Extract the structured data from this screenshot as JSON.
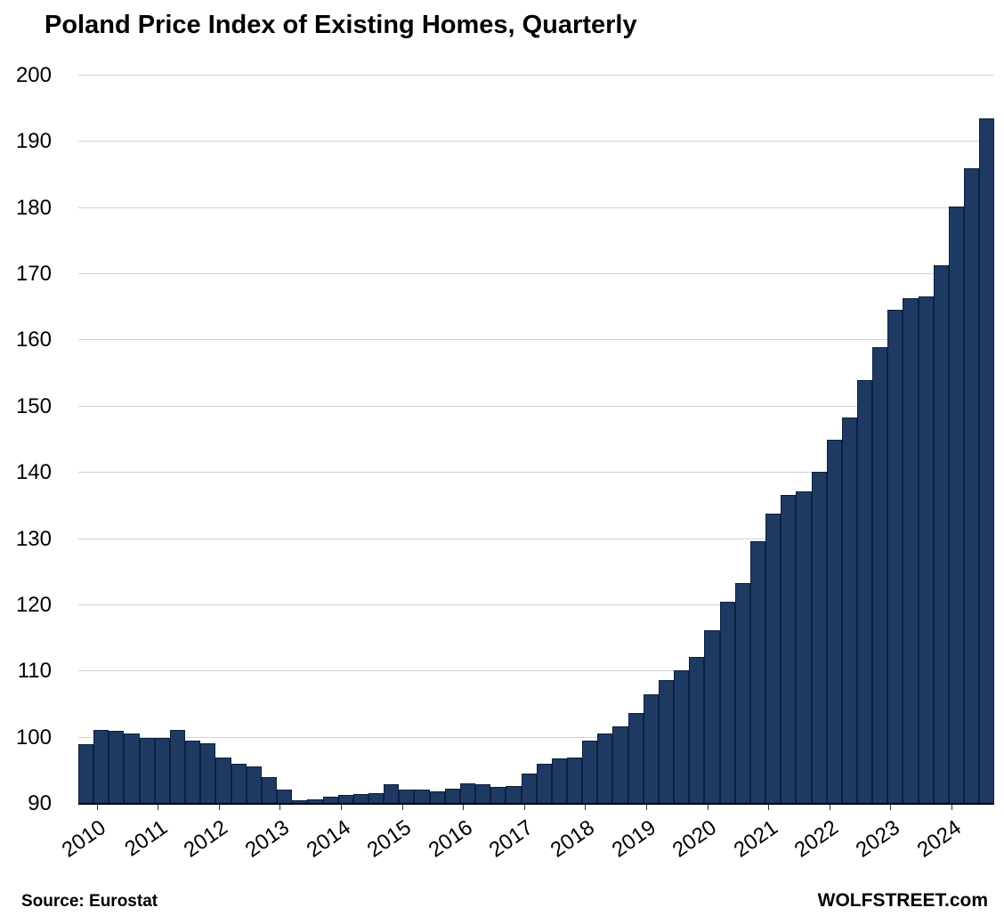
{
  "header": {
    "title": "Poland Price Index of Existing Homes, Quarterly"
  },
  "footer": {
    "source": "Source: Eurostat",
    "branding": "WOLFSTREET.com"
  },
  "colors": {
    "bar_fill": "#1e3a63",
    "bar_border": "#0c2040",
    "gridline": "#c8d5e3",
    "axis_line": "#000000",
    "text": "#000000"
  },
  "chart_data": {
    "type": "bar",
    "title": "Poland Price Index of Existing Homes, Quarterly",
    "xlabel": "",
    "ylabel": "",
    "ylim": [
      90,
      200
    ],
    "y_ticks": [
      90,
      100,
      110,
      120,
      130,
      140,
      150,
      160,
      170,
      180,
      190,
      200
    ],
    "bar_baseline": 90,
    "grid": true,
    "legend_position": "none",
    "source_note": "Source: Eurostat",
    "x_year_labels": [
      "2010",
      "2011",
      "2012",
      "2013",
      "2014",
      "2015",
      "2016",
      "2017",
      "2018",
      "2019",
      "2020",
      "2021",
      "2022",
      "2023",
      "2024"
    ],
    "quarters": [
      "2010 Q1",
      "2010 Q2",
      "2010 Q3",
      "2010 Q4",
      "2011 Q1",
      "2011 Q2",
      "2011 Q3",
      "2011 Q4",
      "2012 Q1",
      "2012 Q2",
      "2012 Q3",
      "2012 Q4",
      "2013 Q1",
      "2013 Q2",
      "2013 Q3",
      "2013 Q4",
      "2014 Q1",
      "2014 Q2",
      "2014 Q3",
      "2014 Q4",
      "2015 Q1",
      "2015 Q2",
      "2015 Q3",
      "2015 Q4",
      "2016 Q1",
      "2016 Q2",
      "2016 Q3",
      "2016 Q4",
      "2017 Q1",
      "2017 Q2",
      "2017 Q3",
      "2017 Q4",
      "2018 Q1",
      "2018 Q2",
      "2018 Q3",
      "2018 Q4",
      "2019 Q1",
      "2019 Q2",
      "2019 Q3",
      "2019 Q4",
      "2020 Q1",
      "2020 Q2",
      "2020 Q3",
      "2020 Q4",
      "2021 Q1",
      "2021 Q2",
      "2021 Q3",
      "2021 Q4",
      "2022 Q1",
      "2022 Q2",
      "2022 Q3",
      "2022 Q4",
      "2023 Q1",
      "2023 Q2",
      "2023 Q3",
      "2023 Q4",
      "2024 Q1",
      "2024 Q2",
      "2024 Q3",
      "2024 Q4"
    ],
    "values": [
      99.0,
      101.2,
      101.0,
      100.6,
      100.0,
      99.9,
      101.1,
      99.5,
      99.1,
      97.0,
      96.0,
      95.6,
      94.1,
      92.1,
      90.6,
      90.7,
      91.1,
      91.4,
      91.5,
      91.6,
      92.9,
      92.2,
      92.1,
      91.9,
      92.3,
      93.1,
      93.0,
      92.5,
      92.7,
      94.6,
      96.1,
      96.8,
      97.0,
      99.5,
      100.6,
      101.7,
      103.7,
      106.6,
      108.7,
      110.2,
      112.2,
      116.2,
      120.5,
      123.4,
      129.7,
      133.8,
      136.7,
      137.2,
      140.1,
      145.0,
      148.4,
      154.0,
      159.0,
      164.7,
      166.4,
      166.7,
      171.4,
      180.3,
      186.0,
      193.5
    ]
  }
}
